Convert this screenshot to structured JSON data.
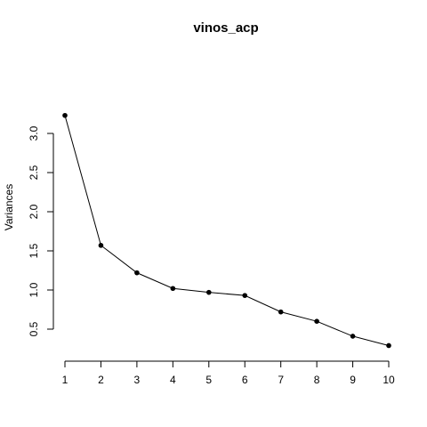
{
  "chart_data": {
    "type": "line",
    "title": "vinos_acp",
    "xlabel": "",
    "ylabel": "Variances",
    "x": [
      1,
      2,
      3,
      4,
      5,
      6,
      7,
      8,
      9,
      10
    ],
    "x_ticks": [
      "1",
      "2",
      "3",
      "4",
      "5",
      "6",
      "7",
      "8",
      "9",
      "10"
    ],
    "y_ticks": [
      "0.5",
      "1.0",
      "1.5",
      "2.0",
      "2.5",
      "3.0"
    ],
    "values": [
      3.23,
      1.57,
      1.22,
      1.02,
      0.97,
      0.93,
      0.72,
      0.6,
      0.41,
      0.29
    ],
    "xlim": [
      1,
      10
    ],
    "ylim": [
      0.5,
      3.0
    ],
    "grid": false,
    "legend": "none",
    "line_color": "#000000",
    "point_color": "#000000"
  }
}
